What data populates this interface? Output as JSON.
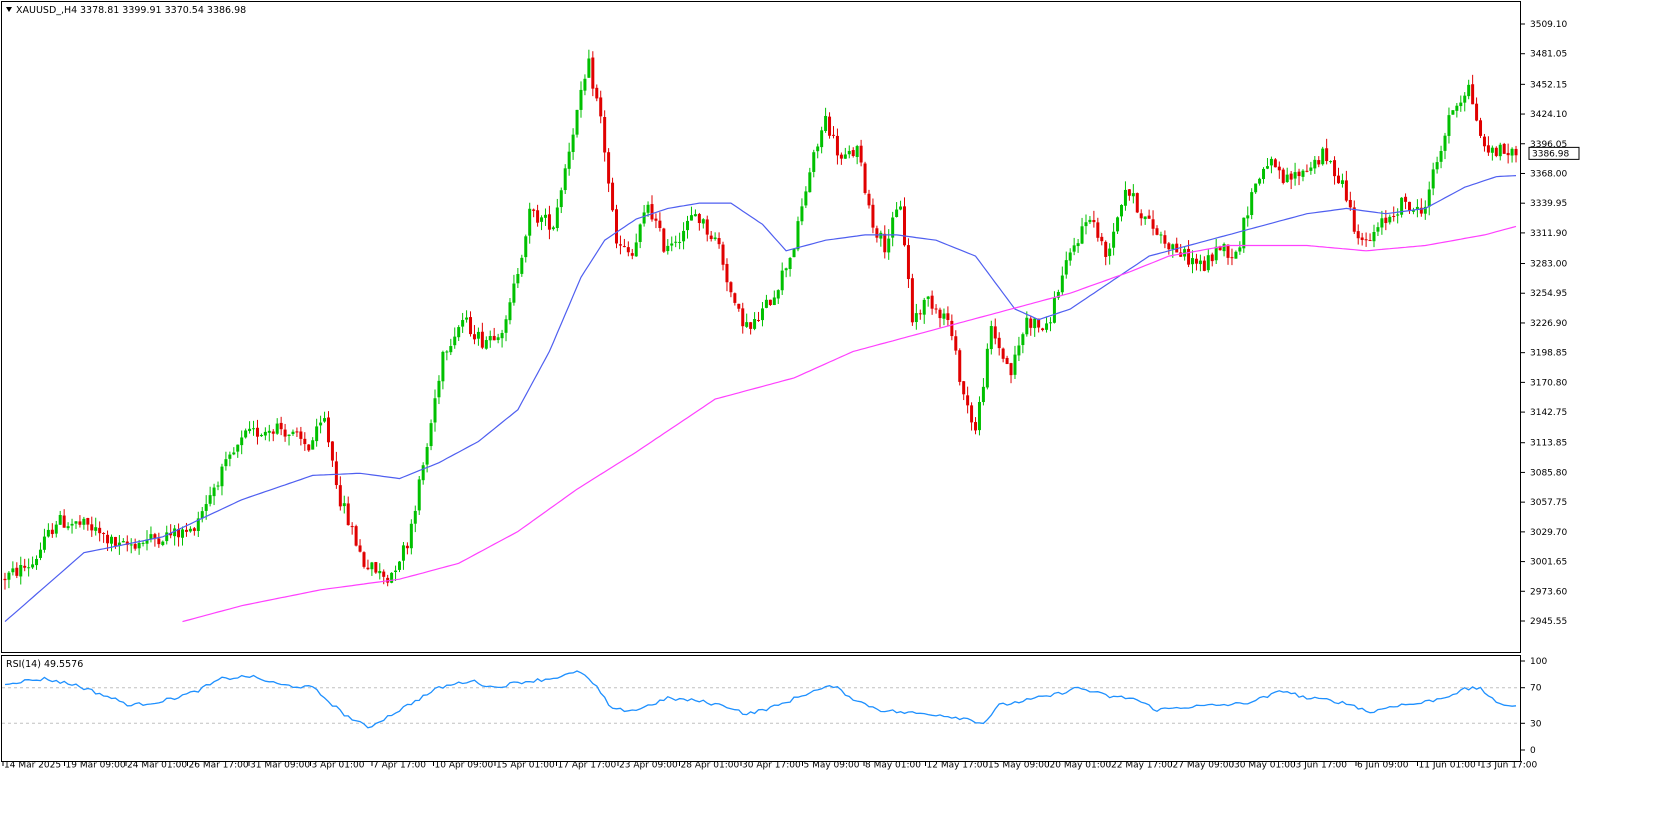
{
  "colors": {
    "background": "#ffffff",
    "frame": "#000000",
    "bull": "#00c000",
    "bear": "#e00000",
    "ma_fast": "#4f5ff0",
    "ma_slow": "#ff40ff",
    "rsi_line": "#1e90ff",
    "rsi_levels": "#c0c0c0",
    "price_tag_bg": "#ffffff"
  },
  "header": {
    "arrow_icon": "triangle-down-icon",
    "symbol": "XAUUSD_,H4",
    "ohlc": "3378.81 3399.91 3370.54 3386.98"
  },
  "rsi_header": {
    "label": "RSI(14) 49.5576"
  },
  "current_price": "3386.98",
  "price_axis": {
    "range": [
      2945.55,
      3509.1
    ],
    "ticks": [
      "3509.10",
      "3481.05",
      "3452.15",
      "3424.10",
      "3396.05",
      "3368.00",
      "3339.95",
      "3311.90",
      "3283.00",
      "3254.95",
      "3226.90",
      "3198.85",
      "3170.80",
      "3142.75",
      "3113.85",
      "3085.80",
      "3057.75",
      "3029.70",
      "3001.65",
      "2973.60",
      "2945.55"
    ]
  },
  "rsi_axis": {
    "range": [
      0,
      100
    ],
    "ticks": [
      "100",
      "70",
      "30",
      "0"
    ],
    "levels": [
      70,
      30
    ]
  },
  "time_axis": {
    "labels": [
      "14 Mar 2025",
      "19 Mar 09:00",
      "24 Mar 01:00",
      "26 Mar 17:00",
      "31 Mar 09:00",
      "3 Apr 01:00",
      "7 Apr 17:00",
      "10 Apr 09:00",
      "15 Apr 01:00",
      "17 Apr 17:00",
      "23 Apr 09:00",
      "28 Apr 01:00",
      "30 Apr 17:00",
      "5 May 09:00",
      "8 May 01:00",
      "12 May 17:00",
      "15 May 09:00",
      "20 May 01:00",
      "22 May 17:00",
      "27 May 09:00",
      "30 May 01:00",
      "3 Jun 17:00",
      "6 Jun 09:00",
      "11 Jun 01:00",
      "13 Jun 17:00"
    ]
  },
  "chart_data": [
    {
      "type": "candlestick",
      "title": "XAUUSD_,H4",
      "ylim": [
        2945.55,
        3509.1
      ],
      "price_keypoints": [
        [
          0,
          2985
        ],
        [
          8,
          3000
        ],
        [
          14,
          3040
        ],
        [
          22,
          3035
        ],
        [
          30,
          3015
        ],
        [
          40,
          3025
        ],
        [
          48,
          3030
        ],
        [
          55,
          3080
        ],
        [
          62,
          3120
        ],
        [
          70,
          3130
        ],
        [
          78,
          3110
        ],
        [
          82,
          3135
        ],
        [
          86,
          3060
        ],
        [
          92,
          3000
        ],
        [
          98,
          2985
        ],
        [
          103,
          3020
        ],
        [
          108,
          3110
        ],
        [
          112,
          3200
        ],
        [
          117,
          3230
        ],
        [
          122,
          3210
        ],
        [
          128,
          3225
        ],
        [
          134,
          3330
        ],
        [
          140,
          3320
        ],
        [
          145,
          3410
        ],
        [
          149,
          3470
        ],
        [
          152,
          3420
        ],
        [
          156,
          3300
        ],
        [
          160,
          3290
        ],
        [
          164,
          3340
        ],
        [
          168,
          3300
        ],
        [
          172,
          3310
        ],
        [
          176,
          3330
        ],
        [
          182,
          3300
        ],
        [
          186,
          3240
        ],
        [
          190,
          3220
        ],
        [
          196,
          3255
        ],
        [
          201,
          3300
        ],
        [
          205,
          3370
        ],
        [
          209,
          3420
        ],
        [
          213,
          3380
        ],
        [
          217,
          3390
        ],
        [
          221,
          3320
        ],
        [
          224,
          3300
        ],
        [
          228,
          3340
        ],
        [
          231,
          3230
        ],
        [
          235,
          3250
        ],
        [
          240,
          3230
        ],
        [
          244,
          3160
        ],
        [
          247,
          3125
        ],
        [
          251,
          3220
        ],
        [
          256,
          3180
        ],
        [
          260,
          3230
        ],
        [
          265,
          3220
        ],
        [
          268,
          3260
        ],
        [
          272,
          3300
        ],
        [
          276,
          3330
        ],
        [
          280,
          3290
        ],
        [
          285,
          3355
        ],
        [
          290,
          3325
        ],
        [
          295,
          3305
        ],
        [
          300,
          3290
        ],
        [
          305,
          3280
        ],
        [
          309,
          3300
        ],
        [
          313,
          3290
        ],
        [
          317,
          3350
        ],
        [
          321,
          3380
        ],
        [
          325,
          3360
        ],
        [
          330,
          3370
        ],
        [
          335,
          3385
        ],
        [
          340,
          3360
        ],
        [
          343,
          3320
        ],
        [
          346,
          3300
        ],
        [
          350,
          3320
        ],
        [
          355,
          3340
        ],
        [
          360,
          3330
        ],
        [
          364,
          3380
        ],
        [
          368,
          3430
        ],
        [
          372,
          3450
        ],
        [
          376,
          3390
        ],
        [
          380,
          3390
        ],
        [
          383,
          3387
        ]
      ],
      "ma_fast_keypoints": [
        [
          0,
          2945
        ],
        [
          20,
          3010
        ],
        [
          40,
          3025
        ],
        [
          60,
          3060
        ],
        [
          78,
          3083
        ],
        [
          90,
          3085
        ],
        [
          100,
          3080
        ],
        [
          110,
          3095
        ],
        [
          120,
          3115
        ],
        [
          130,
          3145
        ],
        [
          138,
          3200
        ],
        [
          146,
          3270
        ],
        [
          152,
          3305
        ],
        [
          160,
          3325
        ],
        [
          168,
          3335
        ],
        [
          176,
          3340
        ],
        [
          184,
          3340
        ],
        [
          192,
          3320
        ],
        [
          198,
          3295
        ],
        [
          208,
          3305
        ],
        [
          218,
          3310
        ],
        [
          226,
          3310
        ],
        [
          236,
          3305
        ],
        [
          246,
          3290
        ],
        [
          256,
          3240
        ],
        [
          262,
          3230
        ],
        [
          270,
          3240
        ],
        [
          280,
          3265
        ],
        [
          290,
          3290
        ],
        [
          300,
          3300
        ],
        [
          310,
          3310
        ],
        [
          320,
          3320
        ],
        [
          330,
          3330
        ],
        [
          340,
          3335
        ],
        [
          350,
          3330
        ],
        [
          360,
          3335
        ],
        [
          370,
          3355
        ],
        [
          378,
          3365
        ],
        [
          383,
          3366
        ]
      ],
      "ma_slow_keypoints": [
        [
          45,
          2945
        ],
        [
          60,
          2960
        ],
        [
          80,
          2975
        ],
        [
          100,
          2985
        ],
        [
          115,
          3000
        ],
        [
          130,
          3030
        ],
        [
          145,
          3070
        ],
        [
          160,
          3105
        ],
        [
          180,
          3155
        ],
        [
          200,
          3175
        ],
        [
          215,
          3200
        ],
        [
          235,
          3220
        ],
        [
          255,
          3240
        ],
        [
          270,
          3255
        ],
        [
          285,
          3275
        ],
        [
          295,
          3290
        ],
        [
          310,
          3300
        ],
        [
          330,
          3300
        ],
        [
          345,
          3295
        ],
        [
          360,
          3300
        ],
        [
          375,
          3310
        ],
        [
          383,
          3318
        ]
      ]
    },
    {
      "type": "line",
      "title": "RSI(14) 49.5576",
      "ylim": [
        0,
        100
      ],
      "rsi_keypoints": [
        [
          0,
          75
        ],
        [
          10,
          80
        ],
        [
          18,
          73
        ],
        [
          26,
          60
        ],
        [
          32,
          50
        ],
        [
          40,
          55
        ],
        [
          48,
          65
        ],
        [
          55,
          80
        ],
        [
          62,
          83
        ],
        [
          70,
          73
        ],
        [
          78,
          70
        ],
        [
          82,
          55
        ],
        [
          86,
          40
        ],
        [
          92,
          25
        ],
        [
          98,
          40
        ],
        [
          104,
          55
        ],
        [
          110,
          70
        ],
        [
          118,
          78
        ],
        [
          124,
          70
        ],
        [
          130,
          76
        ],
        [
          138,
          80
        ],
        [
          146,
          88
        ],
        [
          150,
          70
        ],
        [
          154,
          45
        ],
        [
          160,
          45
        ],
        [
          168,
          58
        ],
        [
          176,
          55
        ],
        [
          184,
          48
        ],
        [
          188,
          40
        ],
        [
          196,
          50
        ],
        [
          204,
          65
        ],
        [
          210,
          72
        ],
        [
          216,
          55
        ],
        [
          222,
          45
        ],
        [
          228,
          42
        ],
        [
          236,
          40
        ],
        [
          244,
          35
        ],
        [
          248,
          30
        ],
        [
          252,
          50
        ],
        [
          258,
          55
        ],
        [
          266,
          62
        ],
        [
          272,
          70
        ],
        [
          280,
          60
        ],
        [
          286,
          58
        ],
        [
          292,
          45
        ],
        [
          298,
          48
        ],
        [
          306,
          50
        ],
        [
          314,
          52
        ],
        [
          320,
          60
        ],
        [
          324,
          67
        ],
        [
          330,
          58
        ],
        [
          336,
          56
        ],
        [
          342,
          50
        ],
        [
          346,
          42
        ],
        [
          352,
          50
        ],
        [
          358,
          52
        ],
        [
          364,
          58
        ],
        [
          370,
          68
        ],
        [
          374,
          70
        ],
        [
          378,
          52
        ],
        [
          383,
          50
        ]
      ]
    }
  ]
}
